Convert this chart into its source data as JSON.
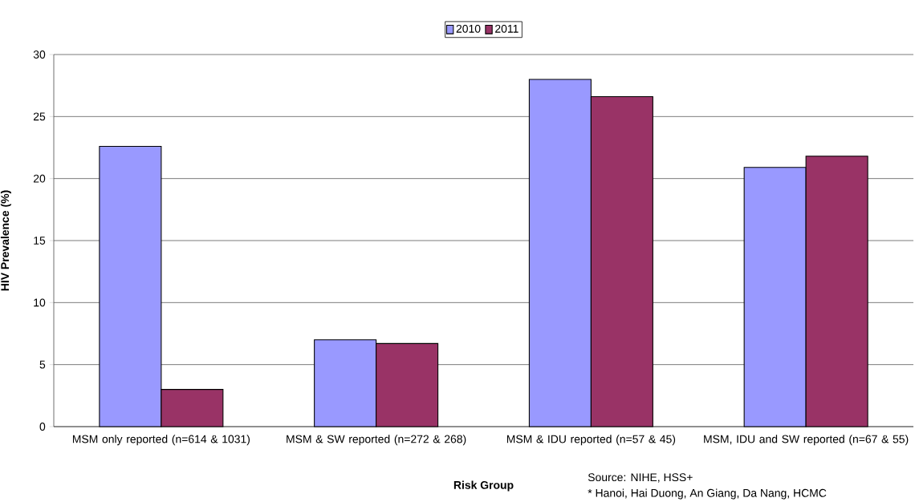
{
  "chart_data": {
    "type": "bar",
    "categories": [
      "MSM only reported  (n=614 & 1031)",
      "MSM & SW reported (n=272 & 268)",
      "MSM & IDU reported (n=57 & 45)",
      "MSM, IDU and SW reported (n=67 & 55)"
    ],
    "series": [
      {
        "name": "2010",
        "color": "#9999ff",
        "values": [
          22.6,
          7.0,
          28.0,
          20.9
        ]
      },
      {
        "name": "2011",
        "color": "#993366",
        "values": [
          3.0,
          6.7,
          26.6,
          21.8
        ]
      }
    ],
    "xlabel": "Risk Group",
    "ylabel": "HIV Prevalence (%)",
    "ylim": [
      0,
      30
    ],
    "yticks": [
      0,
      5,
      10,
      15,
      20,
      25,
      30
    ],
    "grid": "y",
    "legend": "top",
    "annotations": [
      "Source: NIHE, HSS+",
      "* Hanoi, Hai Duong, An Giang, Da Nang, HCMC"
    ]
  }
}
